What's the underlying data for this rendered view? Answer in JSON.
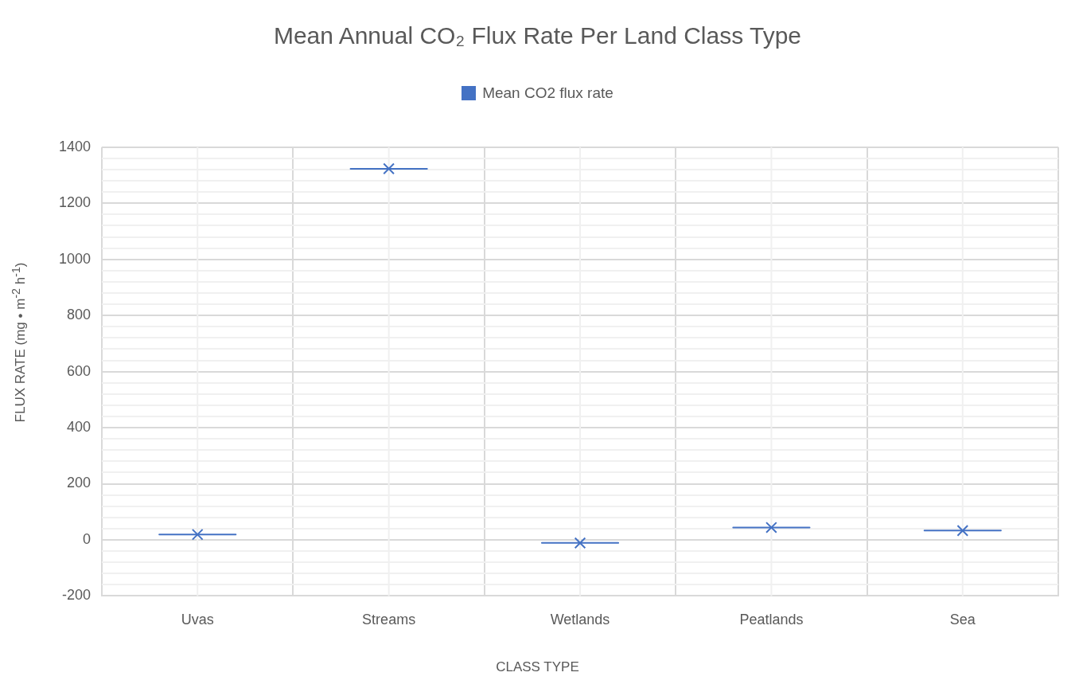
{
  "chart_data": {
    "type": "box",
    "title": "Mean Annual CO₂ Flux Rate Per Land Class Type",
    "xlabel": "CLASS TYPE",
    "ylabel": "FLUX RATE (mg • m$^{-2}$ h$^{-1}$)",
    "categories": [
      "Uvas",
      "Streams",
      "Wetlands",
      "Peatlands",
      "Sea"
    ],
    "series": [
      {
        "name": "Mean CO2 flux rate",
        "color": "#4472c4",
        "boxes": [
          {
            "low": 19,
            "q1": 19,
            "median": 19,
            "q3": 19,
            "high": 19,
            "mean": 19
          },
          {
            "low": 1323,
            "q1": 1323,
            "median": 1323,
            "q3": 1323,
            "high": 1323,
            "mean": 1323
          },
          {
            "low": -11,
            "q1": -11,
            "median": -11,
            "q3": -11,
            "high": -11,
            "mean": -11
          },
          {
            "low": 44,
            "q1": 44,
            "median": 44,
            "q3": 44,
            "high": 44,
            "mean": 44
          },
          {
            "low": 33,
            "q1": 33,
            "median": 33,
            "q3": 33,
            "high": 33,
            "mean": 33
          }
        ]
      }
    ],
    "ylim": [
      -200,
      1400
    ],
    "yticks": [
      -200,
      {
        "value": -160,
        "label": null
      },
      {
        "value": -120,
        "label": null
      },
      {
        "value": -80,
        "label": null
      },
      {
        "value": -40,
        "label": null
      },
      0,
      {
        "value": 40,
        "label": null
      },
      {
        "value": 80,
        "label": null
      },
      {
        "value": 120,
        "label": null
      },
      {
        "value": 160,
        "label": null
      },
      200,
      {
        "value": 240,
        "label": null
      },
      {
        "value": 280,
        "label": null
      },
      {
        "value": 320,
        "label": null
      },
      {
        "value": 360,
        "label": null
      },
      400,
      {
        "value": 440,
        "label": null
      },
      {
        "value": 480,
        "label": null
      },
      {
        "value": 520,
        "label": null
      },
      {
        "value": 560,
        "label": null
      },
      600,
      {
        "value": 640,
        "label": null
      },
      {
        "value": 680,
        "label": null
      },
      {
        "value": 720,
        "label": null
      },
      {
        "value": 760,
        "label": null
      },
      800,
      {
        "value": 840,
        "label": null
      },
      {
        "value": 880,
        "label": null
      },
      {
        "value": 920,
        "label": null
      },
      {
        "value": 960,
        "label": null
      },
      1000,
      {
        "value": 1040,
        "label": null
      },
      {
        "value": 1080,
        "label": null
      },
      {
        "value": 1120,
        "label": null
      },
      {
        "value": 1160,
        "label": null
      },
      1200,
      {
        "value": 1240,
        "label": null
      },
      {
        "value": 1280,
        "label": null
      },
      {
        "value": 1320,
        "label": null
      },
      {
        "value": 1360,
        "label": null
      },
      1400
    ],
    "grid": true,
    "legend": "top",
    "marker": "cross"
  }
}
